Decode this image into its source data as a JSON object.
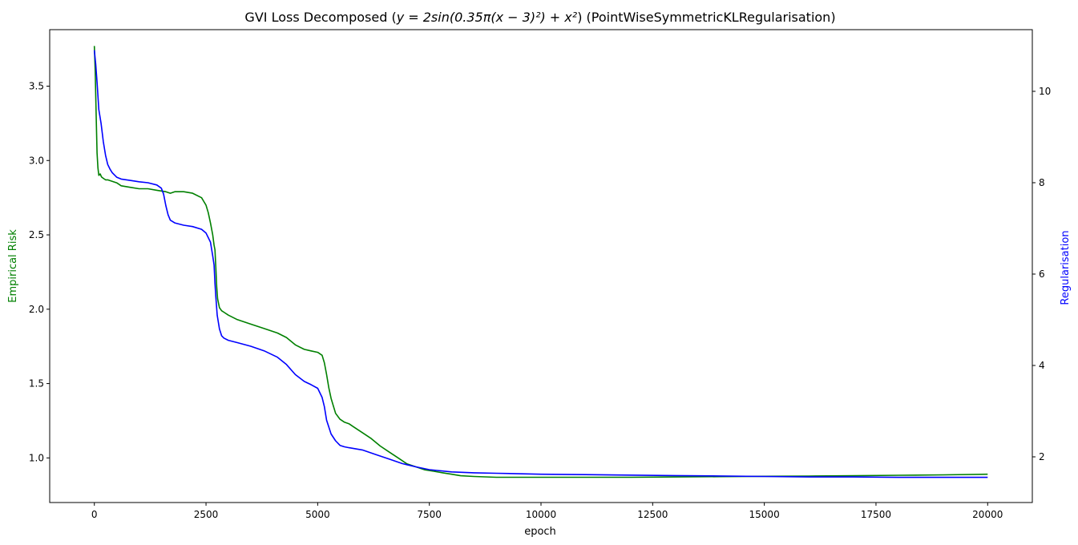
{
  "chart_data": {
    "type": "line",
    "title": "GVI Loss Decomposed ($y=2\\sin(0.35\\pi(x-3)^2)+x^2$) (PointWiseSymmetricKLRegularisation)",
    "title_parts": {
      "prefix": "GVI Loss Decomposed (",
      "formula": "y = 2sin(0.35π(x − 3)²) + x²",
      "suffix": ") (PointWiseSymmetricKLRegularisation)"
    },
    "xlabel": "epoch",
    "ylabel_left": "Empirical Risk",
    "ylabel_right": "Regularisation",
    "xlim": [
      -1000,
      21000
    ],
    "ylim_left": [
      0.7,
      3.88
    ],
    "ylim_right": [
      1.0,
      11.35
    ],
    "x_ticks": [
      "0",
      "2500",
      "5000",
      "7500",
      "10000",
      "12500",
      "15000",
      "17500",
      "20000"
    ],
    "y_ticks_left": [
      "1.0",
      "1.5",
      "2.0",
      "2.5",
      "3.0",
      "3.5"
    ],
    "y_ticks_right": [
      "2",
      "4",
      "6",
      "8",
      "10"
    ],
    "grid": false,
    "legend": "none",
    "colors": {
      "left_axis": "#008000",
      "right_axis": "#0000ff",
      "axes": "#000000"
    },
    "series": [
      {
        "axis": "left",
        "color": "#008000",
        "x": [
          0,
          20,
          40,
          60,
          80,
          100,
          130,
          160,
          200,
          250,
          300,
          400,
          500,
          600,
          800,
          1000,
          1200,
          1400,
          1600,
          1700,
          1800,
          2000,
          2200,
          2400,
          2500,
          2550,
          2600,
          2650,
          2680,
          2700,
          2720,
          2740,
          2760,
          2800,
          2850,
          2900,
          3000,
          3200,
          3500,
          3800,
          4100,
          4300,
          4500,
          4700,
          4850,
          5000,
          5100,
          5150,
          5200,
          5250,
          5300,
          5400,
          5500,
          5600,
          5700,
          5800,
          6000,
          6200,
          6400,
          6600,
          6800,
          7000,
          7200,
          7400,
          7600,
          7800,
          8000,
          8200,
          8500,
          9000,
          10000,
          11000,
          12000,
          13000,
          14000,
          15000,
          16000,
          17000,
          18000,
          19000,
          20000
        ],
        "values": [
          3.77,
          3.6,
          3.3,
          3.05,
          2.95,
          2.9,
          2.91,
          2.89,
          2.88,
          2.87,
          2.87,
          2.86,
          2.85,
          2.83,
          2.82,
          2.81,
          2.81,
          2.8,
          2.79,
          2.78,
          2.79,
          2.79,
          2.78,
          2.75,
          2.7,
          2.65,
          2.58,
          2.5,
          2.43,
          2.4,
          2.28,
          2.15,
          2.07,
          2.01,
          1.99,
          1.98,
          1.96,
          1.93,
          1.9,
          1.87,
          1.84,
          1.81,
          1.76,
          1.73,
          1.72,
          1.71,
          1.69,
          1.64,
          1.56,
          1.47,
          1.4,
          1.3,
          1.26,
          1.24,
          1.23,
          1.21,
          1.17,
          1.13,
          1.08,
          1.04,
          1.0,
          0.96,
          0.94,
          0.92,
          0.91,
          0.9,
          0.89,
          0.88,
          0.875,
          0.87,
          0.87,
          0.87,
          0.87,
          0.872,
          0.874,
          0.876,
          0.878,
          0.88,
          0.883,
          0.886,
          0.89
        ]
      },
      {
        "axis": "right",
        "color": "#0000ff",
        "x": [
          0,
          30,
          60,
          100,
          150,
          200,
          250,
          300,
          350,
          400,
          500,
          600,
          800,
          1000,
          1200,
          1400,
          1500,
          1550,
          1600,
          1650,
          1700,
          1800,
          2000,
          2200,
          2400,
          2500,
          2550,
          2600,
          2650,
          2680,
          2700,
          2720,
          2750,
          2800,
          2850,
          2900,
          3000,
          3200,
          3500,
          3800,
          4100,
          4300,
          4500,
          4700,
          4850,
          5000,
          5100,
          5150,
          5200,
          5300,
          5400,
          5500,
          5600,
          5700,
          6000,
          6300,
          6600,
          6900,
          7200,
          7500,
          8000,
          8500,
          9000,
          10000,
          11000,
          12000,
          13000,
          14000,
          15000,
          16000,
          17000,
          18000,
          19000,
          20000
        ],
        "values": [
          10.9,
          10.6,
          10.2,
          9.6,
          9.3,
          8.9,
          8.6,
          8.4,
          8.3,
          8.22,
          8.12,
          8.08,
          8.05,
          8.02,
          8.0,
          7.95,
          7.88,
          7.75,
          7.5,
          7.3,
          7.18,
          7.12,
          7.07,
          7.04,
          6.98,
          6.9,
          6.8,
          6.7,
          6.4,
          6.2,
          5.8,
          5.5,
          5.1,
          4.8,
          4.65,
          4.6,
          4.55,
          4.5,
          4.42,
          4.32,
          4.18,
          4.02,
          3.8,
          3.65,
          3.58,
          3.5,
          3.3,
          3.1,
          2.8,
          2.5,
          2.35,
          2.25,
          2.22,
          2.2,
          2.15,
          2.05,
          1.95,
          1.85,
          1.78,
          1.72,
          1.67,
          1.65,
          1.64,
          1.62,
          1.61,
          1.6,
          1.59,
          1.58,
          1.57,
          1.56,
          1.56,
          1.55,
          1.55,
          1.55
        ]
      }
    ]
  }
}
